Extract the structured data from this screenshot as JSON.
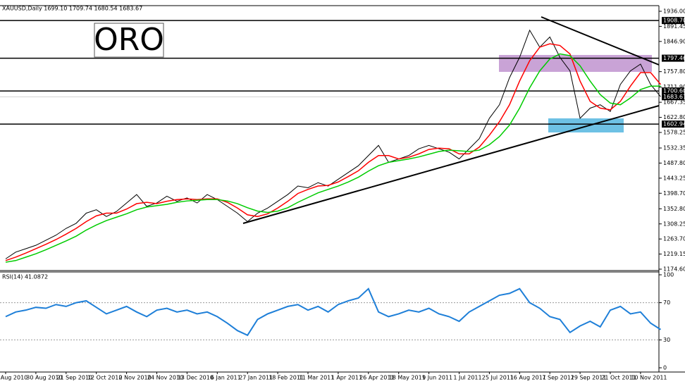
{
  "chart_data": [
    {
      "type": "line",
      "title": "XAUUSD,Daily  1699.10 1709.74 1680.54 1683.67",
      "annotation": "ORO",
      "categories": [
        "Aug 2010",
        null,
        null,
        "30 Aug 2010",
        null,
        null,
        "21 Sep 2010",
        null,
        null,
        "12 Oct 2010",
        null,
        null,
        "2 Nov 2010",
        null,
        null,
        "24 Nov 2010",
        null,
        null,
        "13 Dec 2010",
        null,
        null,
        "6 Jan 2011",
        null,
        null,
        "27 Jan 2011",
        null,
        null,
        "18 Feb 2011",
        null,
        null,
        "11 Mar 2011",
        null,
        null,
        "1 Apr 2011",
        null,
        null,
        "26 Apr 2011",
        null,
        null,
        "18 May 2011",
        null,
        null,
        "9 Jun 2011",
        null,
        null,
        "1 Jul 2011",
        null,
        null,
        "25 Jul 2011",
        null,
        null,
        "16 Aug 2011",
        null,
        null,
        "7 Sep 2011",
        null,
        null,
        "29 Sep 2011",
        null,
        null,
        "21 Oct 2011",
        null,
        null,
        "10 Nov 2011",
        null,
        null
      ],
      "series": [
        {
          "color": "#000000",
          "values": [
            1205,
            1225,
            1235,
            1245,
            1260,
            1275,
            1295,
            1310,
            1340,
            1350,
            1330,
            1345,
            1370,
            1395,
            1360,
            1370,
            1390,
            1375,
            1385,
            1370,
            1395,
            1380,
            1360,
            1340,
            1315,
            1340,
            1355,
            1375,
            1395,
            1420,
            1415,
            1430,
            1420,
            1440,
            1460,
            1480,
            1510,
            1540,
            1490,
            1500,
            1510,
            1530,
            1540,
            1530,
            1520,
            1500,
            1530,
            1560,
            1620,
            1660,
            1740,
            1800,
            1880,
            1830,
            1860,
            1800,
            1760,
            1620,
            1650,
            1660,
            1640,
            1720,
            1760,
            1780,
            1720,
            1683.67
          ]
        },
        {
          "color": "#ff0000",
          "values": [
            1200,
            1210,
            1222,
            1235,
            1248,
            1262,
            1278,
            1295,
            1315,
            1332,
            1340,
            1340,
            1352,
            1368,
            1372,
            1368,
            1375,
            1380,
            1382,
            1380,
            1382,
            1382,
            1372,
            1355,
            1335,
            1330,
            1338,
            1355,
            1375,
            1398,
            1410,
            1420,
            1422,
            1432,
            1448,
            1465,
            1490,
            1510,
            1510,
            1500,
            1505,
            1515,
            1528,
            1532,
            1530,
            1515,
            1515,
            1535,
            1570,
            1610,
            1660,
            1730,
            1790,
            1830,
            1840,
            1835,
            1810,
            1730,
            1670,
            1650,
            1645,
            1670,
            1715,
            1755,
            1755,
            1720
          ]
        },
        {
          "color": "#00cc00",
          "values": [
            1195,
            1200,
            1210,
            1220,
            1232,
            1245,
            1258,
            1272,
            1290,
            1305,
            1318,
            1328,
            1338,
            1350,
            1358,
            1362,
            1366,
            1372,
            1376,
            1378,
            1380,
            1380,
            1376,
            1368,
            1356,
            1346,
            1342,
            1346,
            1356,
            1372,
            1386,
            1400,
            1410,
            1420,
            1432,
            1446,
            1464,
            1480,
            1490,
            1495,
            1500,
            1506,
            1514,
            1522,
            1526,
            1524,
            1522,
            1526,
            1542,
            1566,
            1600,
            1650,
            1710,
            1760,
            1795,
            1810,
            1805,
            1775,
            1730,
            1690,
            1665,
            1660,
            1680,
            1705,
            1715,
            1715
          ]
        }
      ],
      "ylim": [
        1174.6,
        1936
      ],
      "yticks": [
        {
          "value": 1936,
          "label": "1936.00"
        },
        1891.45,
        {
          "value": 1846.9,
          "label": "1846.90"
        },
        {
          "value": 1757.8,
          "label": "1757.80"
        },
        {
          "value": 1711.9,
          "label": "1711.90"
        },
        1667.35,
        {
          "value": 1622.8,
          "label": "1622.80"
        },
        1578.25,
        1532.35,
        {
          "value": 1487.8,
          "label": "1487.80"
        },
        1443.25,
        {
          "value": 1398.7,
          "label": "1398.70"
        },
        {
          "value": 1352.8,
          "label": "1352.80"
        },
        1308.25,
        {
          "value": 1263.7,
          "label": "1263.70"
        },
        1219.15,
        {
          "value": 1174.6,
          "label": "1174.60"
        }
      ],
      "hlines": [
        {
          "value": 1908.7,
          "label": "1908.70"
        },
        1797.46,
        {
          "value": 1700.6,
          "label": "1700.60"
        },
        1602.94
      ],
      "last_price": 1683.67
    },
    {
      "type": "line",
      "title": "RSI(14) 41.0872",
      "series": [
        {
          "color": "#1e7fd8",
          "values": [
            55,
            60,
            62,
            65,
            64,
            68,
            66,
            70,
            72,
            65,
            58,
            62,
            66,
            60,
            55,
            62,
            64,
            60,
            62,
            58,
            60,
            55,
            48,
            40,
            35,
            52,
            58,
            62,
            66,
            68,
            62,
            66,
            60,
            68,
            72,
            75,
            85,
            60,
            55,
            58,
            62,
            60,
            64,
            58,
            55,
            50,
            60,
            66,
            72,
            78,
            80,
            85,
            70,
            64,
            55,
            52,
            38,
            45,
            50,
            44,
            62,
            66,
            58,
            60,
            48,
            41.0872
          ]
        }
      ],
      "ylim": [
        0,
        100
      ],
      "yticks": [
        100,
        70,
        30,
        0
      ],
      "guides": [
        70,
        30
      ]
    }
  ]
}
